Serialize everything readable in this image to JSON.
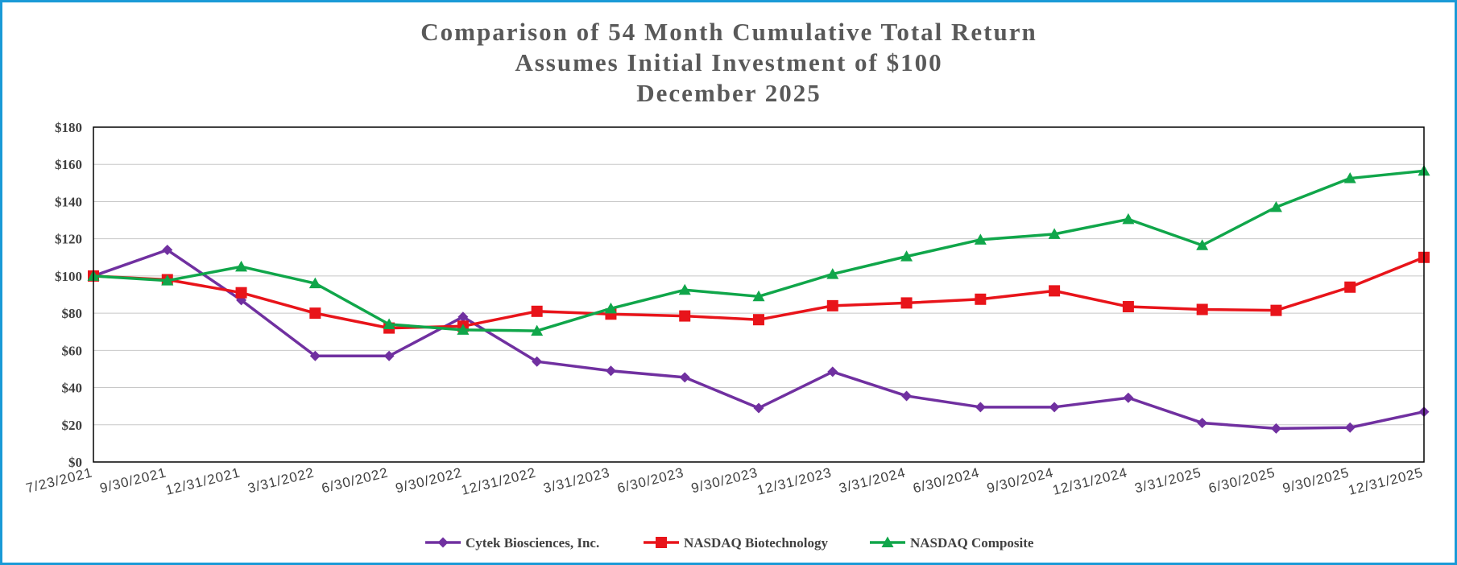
{
  "chart_data": {
    "type": "line",
    "title_lines": [
      "Comparison of 54 Month Cumulative Total Return",
      "Assumes Initial Investment of $100",
      "December 2025"
    ],
    "xlabel": "",
    "ylabel": "",
    "categories": [
      "7/23/2021",
      "9/30/2021",
      "12/31/2021",
      "3/31/2022",
      "6/30/2022",
      "9/30/2022",
      "12/31/2022",
      "3/31/2023",
      "6/30/2023",
      "9/30/2023",
      "12/31/2023",
      "3/31/2024",
      "6/30/2024",
      "9/30/2024",
      "12/31/2024",
      "3/31/2025",
      "6/30/2025",
      "9/30/2025",
      "12/31/2025"
    ],
    "ylim": [
      0,
      180
    ],
    "yticks": [
      0,
      20,
      40,
      60,
      80,
      100,
      120,
      140,
      160,
      180
    ],
    "ytick_labels": [
      "$0",
      "$20",
      "$40",
      "$60",
      "$80",
      "$100",
      "$120",
      "$140",
      "$160",
      "$180"
    ],
    "grid": true,
    "legend_position": "bottom",
    "series": [
      {
        "name": "Cytek Biosciences, Inc.",
        "color": "#7030a0",
        "marker": "diamond",
        "values": [
          100,
          114,
          87,
          57,
          57,
          78,
          54,
          49,
          45.5,
          29,
          48.5,
          35.5,
          29.5,
          29.5,
          34.5,
          21,
          18,
          18.5,
          27
        ]
      },
      {
        "name": "NASDAQ Biotechnology",
        "color": "#e8141a",
        "marker": "square",
        "values": [
          100,
          98,
          91,
          80,
          72,
          73,
          81,
          79.5,
          78.5,
          76.5,
          84,
          85.5,
          87.5,
          92,
          83.5,
          82,
          81.5,
          94,
          110
        ]
      },
      {
        "name": "NASDAQ Composite",
        "color": "#10a64a",
        "marker": "triangle",
        "values": [
          100,
          97.5,
          105,
          96,
          74,
          71,
          70.5,
          82.5,
          92.5,
          89,
          101,
          110.5,
          119.5,
          122.5,
          130.5,
          116.5,
          137,
          152.5,
          156.5
        ]
      }
    ]
  }
}
